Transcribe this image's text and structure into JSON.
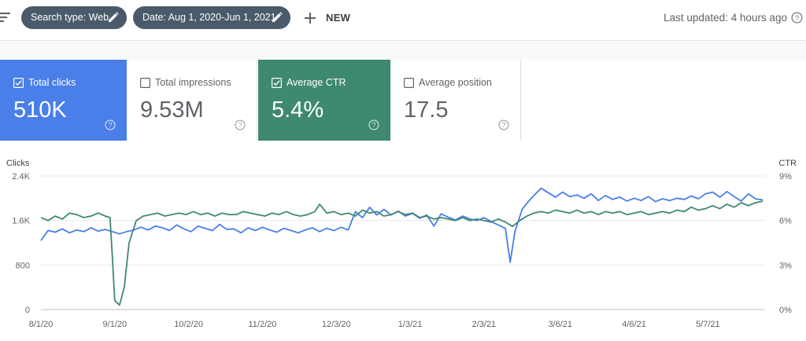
{
  "toolbar": {
    "chips": [
      {
        "label": "Search type: Web"
      },
      {
        "label": "Date: Aug 1, 2020-Jun 1, 2021"
      }
    ],
    "new_label": "NEW",
    "last_updated": "Last updated: 4 hours ago"
  },
  "metrics": [
    {
      "label": "Total clicks",
      "value": "510K",
      "checked": true
    },
    {
      "label": "Total impressions",
      "value": "9.53M",
      "checked": false
    },
    {
      "label": "Average CTR",
      "value": "5.4%",
      "checked": true
    },
    {
      "label": "Average position",
      "value": "17.5",
      "checked": false
    }
  ],
  "colors": {
    "clicks": "#4a7ee8",
    "ctr": "#3f8872",
    "chip": "#4a5a6a"
  },
  "chart_data": {
    "type": "line",
    "ylabel_left": "Clicks",
    "ylabel_right": "CTR",
    "y_left_ticks": [
      "0",
      "800",
      "1.6K",
      "2.4K"
    ],
    "y_left_range": [
      0,
      2400
    ],
    "y_right_ticks": [
      "0%",
      "3%",
      "6%",
      "9%"
    ],
    "y_right_range": [
      0,
      9
    ],
    "x_tick_labels": [
      "8/1/20",
      "9/1/20",
      "10/2/20",
      "11/2/20",
      "12/3/20",
      "1/3/21",
      "2/3/21",
      "3/6/21",
      "4/6/21",
      "5/7/21"
    ],
    "x_ticks_day": [
      0,
      31,
      62,
      93,
      124,
      155,
      186,
      218,
      249,
      280
    ],
    "x_range_days": [
      0,
      304
    ],
    "grid": true,
    "series": [
      {
        "name": "Clicks",
        "axis": "left",
        "points": [
          [
            0,
            1240
          ],
          [
            3,
            1420
          ],
          [
            6,
            1390
          ],
          [
            9,
            1450
          ],
          [
            12,
            1380
          ],
          [
            15,
            1430
          ],
          [
            18,
            1400
          ],
          [
            21,
            1470
          ],
          [
            24,
            1410
          ],
          [
            27,
            1440
          ],
          [
            30,
            1400
          ],
          [
            33,
            1360
          ],
          [
            36,
            1400
          ],
          [
            39,
            1430
          ],
          [
            42,
            1480
          ],
          [
            45,
            1430
          ],
          [
            48,
            1500
          ],
          [
            51,
            1470
          ],
          [
            54,
            1420
          ],
          [
            57,
            1520
          ],
          [
            60,
            1450
          ],
          [
            63,
            1400
          ],
          [
            66,
            1500
          ],
          [
            69,
            1460
          ],
          [
            72,
            1420
          ],
          [
            75,
            1530
          ],
          [
            78,
            1440
          ],
          [
            81,
            1450
          ],
          [
            84,
            1380
          ],
          [
            87,
            1470
          ],
          [
            90,
            1420
          ],
          [
            93,
            1480
          ],
          [
            96,
            1430
          ],
          [
            99,
            1390
          ],
          [
            102,
            1460
          ],
          [
            105,
            1420
          ],
          [
            108,
            1380
          ],
          [
            111,
            1430
          ],
          [
            114,
            1470
          ],
          [
            117,
            1400
          ],
          [
            120,
            1460
          ],
          [
            123,
            1420
          ],
          [
            126,
            1480
          ],
          [
            129,
            1430
          ],
          [
            132,
            1760
          ],
          [
            135,
            1650
          ],
          [
            138,
            1840
          ],
          [
            141,
            1700
          ],
          [
            144,
            1800
          ],
          [
            147,
            1700
          ],
          [
            150,
            1770
          ],
          [
            153,
            1680
          ],
          [
            156,
            1730
          ],
          [
            159,
            1640
          ],
          [
            162,
            1700
          ],
          [
            165,
            1500
          ],
          [
            168,
            1720
          ],
          [
            171,
            1660
          ],
          [
            174,
            1610
          ],
          [
            177,
            1680
          ],
          [
            180,
            1630
          ],
          [
            183,
            1600
          ],
          [
            186,
            1650
          ],
          [
            189,
            1580
          ],
          [
            192,
            1520
          ],
          [
            195,
            1460
          ],
          [
            197,
            850
          ],
          [
            199,
            1400
          ],
          [
            202,
            1800
          ],
          [
            205,
            1960
          ],
          [
            207,
            2050
          ],
          [
            210,
            2180
          ],
          [
            213,
            2100
          ],
          [
            216,
            2020
          ],
          [
            219,
            2110
          ],
          [
            222,
            2030
          ],
          [
            225,
            2060
          ],
          [
            228,
            2000
          ],
          [
            231,
            2080
          ],
          [
            234,
            1960
          ],
          [
            237,
            2050
          ],
          [
            240,
            1980
          ],
          [
            243,
            2020
          ],
          [
            246,
            1950
          ],
          [
            249,
            2000
          ],
          [
            252,
            1960
          ],
          [
            255,
            2030
          ],
          [
            258,
            1940
          ],
          [
            261,
            1990
          ],
          [
            264,
            1960
          ],
          [
            267,
            2000
          ],
          [
            270,
            1980
          ],
          [
            273,
            2040
          ],
          [
            276,
            1990
          ],
          [
            279,
            2080
          ],
          [
            282,
            2110
          ],
          [
            285,
            2020
          ],
          [
            288,
            2120
          ],
          [
            291,
            2030
          ],
          [
            294,
            1950
          ],
          [
            297,
            2080
          ],
          [
            300,
            1990
          ],
          [
            303,
            1970
          ]
        ]
      },
      {
        "name": "CTR",
        "axis": "right",
        "points": [
          [
            0,
            6.2
          ],
          [
            3,
            6.0
          ],
          [
            6,
            6.3
          ],
          [
            9,
            6.1
          ],
          [
            12,
            6.5
          ],
          [
            15,
            6.4
          ],
          [
            18,
            6.2
          ],
          [
            21,
            6.3
          ],
          [
            24,
            6.5
          ],
          [
            27,
            6.3
          ],
          [
            29,
            6.2
          ],
          [
            30,
            3.5
          ],
          [
            31,
            0.6
          ],
          [
            33,
            0.3
          ],
          [
            35,
            1.5
          ],
          [
            37,
            4.5
          ],
          [
            40,
            6.0
          ],
          [
            43,
            6.3
          ],
          [
            46,
            6.4
          ],
          [
            49,
            6.5
          ],
          [
            52,
            6.3
          ],
          [
            55,
            6.4
          ],
          [
            58,
            6.5
          ],
          [
            61,
            6.4
          ],
          [
            64,
            6.6
          ],
          [
            67,
            6.4
          ],
          [
            70,
            6.5
          ],
          [
            73,
            6.3
          ],
          [
            76,
            6.5
          ],
          [
            79,
            6.4
          ],
          [
            82,
            6.4
          ],
          [
            85,
            6.6
          ],
          [
            88,
            6.5
          ],
          [
            91,
            6.4
          ],
          [
            94,
            6.3
          ],
          [
            97,
            6.5
          ],
          [
            100,
            6.4
          ],
          [
            103,
            6.6
          ],
          [
            106,
            6.4
          ],
          [
            109,
            6.3
          ],
          [
            112,
            6.4
          ],
          [
            115,
            6.6
          ],
          [
            117,
            7.1
          ],
          [
            120,
            6.5
          ],
          [
            123,
            6.6
          ],
          [
            126,
            6.4
          ],
          [
            129,
            6.5
          ],
          [
            132,
            6.3
          ],
          [
            135,
            6.7
          ],
          [
            138,
            6.5
          ],
          [
            141,
            6.6
          ],
          [
            144,
            6.3
          ],
          [
            147,
            6.4
          ],
          [
            150,
            6.6
          ],
          [
            153,
            6.4
          ],
          [
            156,
            6.5
          ],
          [
            159,
            6.2
          ],
          [
            162,
            6.3
          ],
          [
            165,
            6.1
          ],
          [
            168,
            6.2
          ],
          [
            171,
            6.1
          ],
          [
            174,
            6.0
          ],
          [
            177,
            6.2
          ],
          [
            180,
            6.0
          ],
          [
            183,
            6.1
          ],
          [
            186,
            6.0
          ],
          [
            189,
            5.9
          ],
          [
            192,
            6.1
          ],
          [
            195,
            5.9
          ],
          [
            198,
            5.6
          ],
          [
            201,
            6.0
          ],
          [
            204,
            6.3
          ],
          [
            207,
            6.5
          ],
          [
            210,
            6.6
          ],
          [
            213,
            6.5
          ],
          [
            216,
            6.7
          ],
          [
            219,
            6.6
          ],
          [
            222,
            6.5
          ],
          [
            225,
            6.7
          ],
          [
            228,
            6.5
          ],
          [
            231,
            6.6
          ],
          [
            234,
            6.4
          ],
          [
            237,
            6.6
          ],
          [
            240,
            6.5
          ],
          [
            243,
            6.6
          ],
          [
            246,
            6.4
          ],
          [
            249,
            6.5
          ],
          [
            252,
            6.6
          ],
          [
            255,
            6.4
          ],
          [
            258,
            6.5
          ],
          [
            261,
            6.6
          ],
          [
            264,
            6.5
          ],
          [
            267,
            6.7
          ],
          [
            270,
            6.6
          ],
          [
            273,
            6.9
          ],
          [
            276,
            6.7
          ],
          [
            279,
            6.8
          ],
          [
            282,
            7.0
          ],
          [
            285,
            6.8
          ],
          [
            288,
            7.1
          ],
          [
            291,
            6.9
          ],
          [
            294,
            7.2
          ],
          [
            297,
            7.0
          ],
          [
            300,
            7.2
          ],
          [
            303,
            7.3
          ]
        ]
      }
    ]
  }
}
